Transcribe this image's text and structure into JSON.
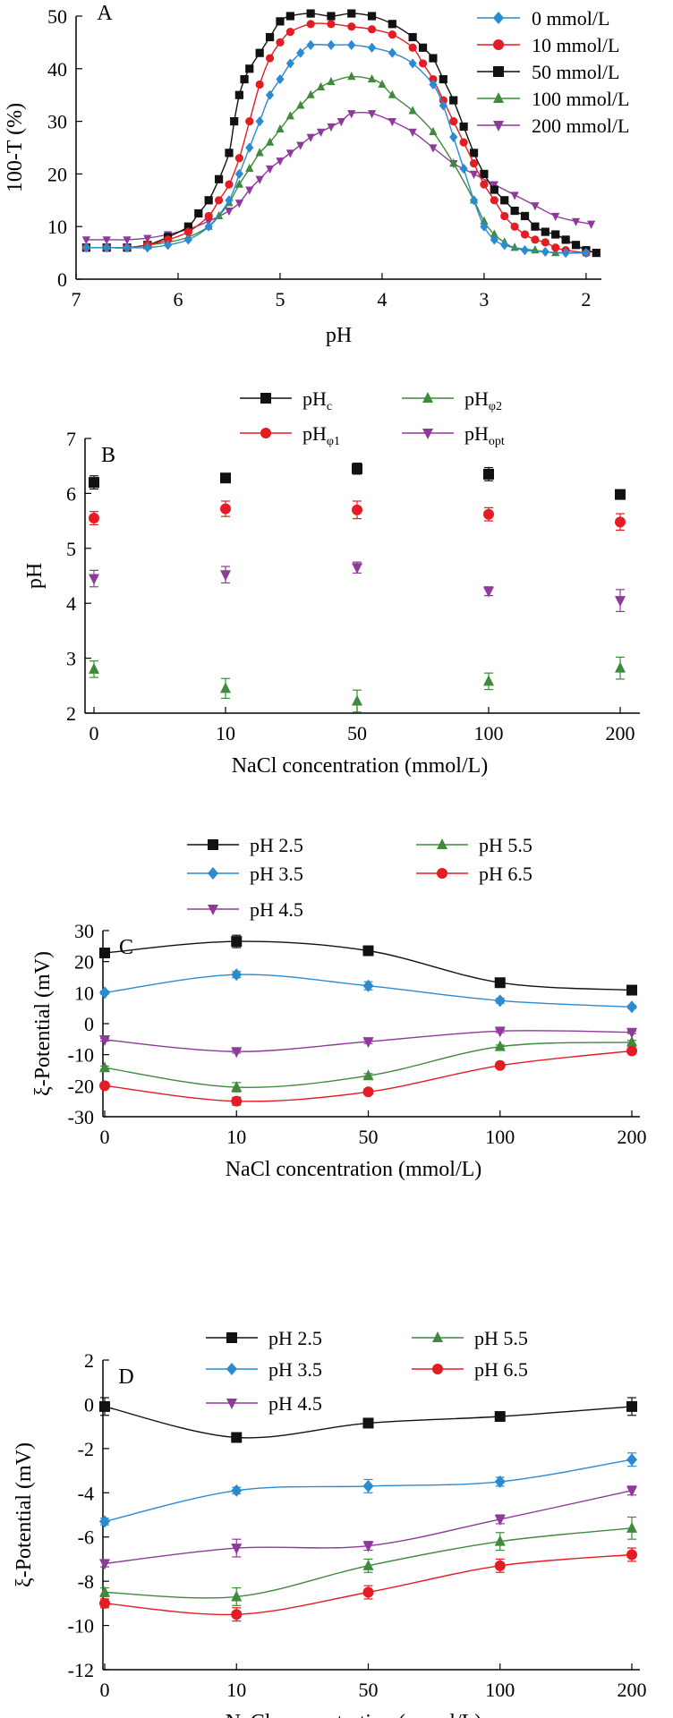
{
  "chart_data": [
    {
      "panel": "A",
      "type": "line",
      "xlabel": "pH",
      "ylabel": "100-T (%)",
      "xlim": [
        7.0,
        1.85
      ],
      "ylim": [
        0,
        50
      ],
      "xticks": [
        7,
        6,
        5,
        4,
        3,
        2
      ],
      "yticks": [
        0,
        10,
        20,
        30,
        40,
        50
      ],
      "legend_position": "top-right",
      "series": [
        {
          "name": "0 mmol/L",
          "color": "#2a8bd0",
          "marker": "diamond",
          "points": [
            [
              6.9,
              6
            ],
            [
              6.7,
              6
            ],
            [
              6.5,
              6
            ],
            [
              6.3,
              6
            ],
            [
              6.1,
              6.5
            ],
            [
              5.9,
              7.5
            ],
            [
              5.7,
              10
            ],
            [
              5.5,
              15
            ],
            [
              5.4,
              20
            ],
            [
              5.3,
              25
            ],
            [
              5.2,
              30
            ],
            [
              5.1,
              35
            ],
            [
              5.0,
              38
            ],
            [
              4.9,
              41
            ],
            [
              4.8,
              43
            ],
            [
              4.7,
              44.5
            ],
            [
              4.5,
              44.5
            ],
            [
              4.3,
              44.5
            ],
            [
              4.1,
              44
            ],
            [
              3.9,
              43
            ],
            [
              3.7,
              41
            ],
            [
              3.5,
              37
            ],
            [
              3.4,
              33
            ],
            [
              3.3,
              27
            ],
            [
              3.2,
              21
            ],
            [
              3.1,
              15
            ],
            [
              3.0,
              10
            ],
            [
              2.9,
              7.5
            ],
            [
              2.8,
              6.5
            ],
            [
              2.6,
              5.5
            ],
            [
              2.4,
              5.2
            ],
            [
              2.2,
              5
            ],
            [
              2.0,
              5
            ]
          ]
        },
        {
          "name": "10 mmol/L",
          "color": "#e41c23",
          "marker": "circle",
          "points": [
            [
              6.9,
              6
            ],
            [
              6.7,
              6
            ],
            [
              6.5,
              6
            ],
            [
              6.3,
              6.5
            ],
            [
              6.1,
              7.5
            ],
            [
              5.9,
              9
            ],
            [
              5.7,
              12
            ],
            [
              5.6,
              15
            ],
            [
              5.5,
              18
            ],
            [
              5.4,
              23
            ],
            [
              5.3,
              30
            ],
            [
              5.2,
              37
            ],
            [
              5.1,
              42
            ],
            [
              5.0,
              45
            ],
            [
              4.9,
              47
            ],
            [
              4.7,
              48.5
            ],
            [
              4.5,
              48.5
            ],
            [
              4.3,
              48
            ],
            [
              4.1,
              47.5
            ],
            [
              3.9,
              46.5
            ],
            [
              3.7,
              44
            ],
            [
              3.6,
              41
            ],
            [
              3.5,
              38
            ],
            [
              3.4,
              34
            ],
            [
              3.3,
              30
            ],
            [
              3.2,
              26
            ],
            [
              3.1,
              22
            ],
            [
              3.0,
              18
            ],
            [
              2.9,
              15
            ],
            [
              2.8,
              12
            ],
            [
              2.7,
              10
            ],
            [
              2.6,
              8.5
            ],
            [
              2.5,
              7.5
            ],
            [
              2.4,
              7
            ],
            [
              2.3,
              6
            ],
            [
              2.2,
              5.5
            ],
            [
              2.0,
              5
            ]
          ]
        },
        {
          "name": "50 mmol/L",
          "color": "#111111",
          "marker": "square",
          "points": [
            [
              6.9,
              6
            ],
            [
              6.7,
              6
            ],
            [
              6.5,
              6
            ],
            [
              6.3,
              6.5
            ],
            [
              6.1,
              8
            ],
            [
              5.9,
              10
            ],
            [
              5.8,
              12.5
            ],
            [
              5.7,
              15
            ],
            [
              5.6,
              19
            ],
            [
              5.5,
              24
            ],
            [
              5.45,
              30
            ],
            [
              5.4,
              35
            ],
            [
              5.35,
              38
            ],
            [
              5.3,
              40
            ],
            [
              5.2,
              43
            ],
            [
              5.1,
              46
            ],
            [
              5.0,
              49
            ],
            [
              4.9,
              50
            ],
            [
              4.7,
              50.5
            ],
            [
              4.5,
              50
            ],
            [
              4.3,
              50.5
            ],
            [
              4.1,
              50
            ],
            [
              3.9,
              48.5
            ],
            [
              3.7,
              46
            ],
            [
              3.6,
              44
            ],
            [
              3.5,
              42
            ],
            [
              3.4,
              38
            ],
            [
              3.3,
              34
            ],
            [
              3.2,
              29
            ],
            [
              3.1,
              24
            ],
            [
              3.0,
              20
            ],
            [
              2.9,
              17
            ],
            [
              2.8,
              15
            ],
            [
              2.7,
              13
            ],
            [
              2.6,
              12
            ],
            [
              2.5,
              10
            ],
            [
              2.4,
              9
            ],
            [
              2.3,
              8.5
            ],
            [
              2.2,
              7.5
            ],
            [
              2.1,
              6.5
            ],
            [
              2.0,
              5.5
            ],
            [
              1.9,
              5
            ]
          ]
        },
        {
          "name": "100 mmol/L",
          "color": "#3f8a3b",
          "marker": "triangle-up",
          "points": [
            [
              6.9,
              6
            ],
            [
              6.7,
              6
            ],
            [
              6.5,
              6
            ],
            [
              6.3,
              6.5
            ],
            [
              6.1,
              7
            ],
            [
              5.9,
              8
            ],
            [
              5.7,
              10
            ],
            [
              5.6,
              12
            ],
            [
              5.5,
              14.5
            ],
            [
              5.4,
              18
            ],
            [
              5.3,
              21
            ],
            [
              5.2,
              24
            ],
            [
              5.1,
              26
            ],
            [
              5.0,
              28.5
            ],
            [
              4.9,
              31
            ],
            [
              4.8,
              33
            ],
            [
              4.7,
              35
            ],
            [
              4.6,
              36.5
            ],
            [
              4.5,
              37.5
            ],
            [
              4.3,
              38.5
            ],
            [
              4.1,
              38
            ],
            [
              4.0,
              37
            ],
            [
              3.9,
              35
            ],
            [
              3.7,
              32
            ],
            [
              3.5,
              28
            ],
            [
              3.3,
              22
            ],
            [
              3.1,
              15
            ],
            [
              3.0,
              11
            ],
            [
              2.9,
              8.5
            ],
            [
              2.8,
              7
            ],
            [
              2.7,
              6
            ],
            [
              2.5,
              5.5
            ],
            [
              2.3,
              5
            ],
            [
              2.0,
              5
            ]
          ]
        },
        {
          "name": "200 mmol/L",
          "color": "#8e3a9a",
          "marker": "triangle-down",
          "points": [
            [
              6.9,
              7.5
            ],
            [
              6.7,
              7.5
            ],
            [
              6.5,
              7.5
            ],
            [
              6.3,
              7.8
            ],
            [
              6.1,
              8.5
            ],
            [
              5.9,
              9.5
            ],
            [
              5.7,
              11
            ],
            [
              5.5,
              13
            ],
            [
              5.4,
              14.5
            ],
            [
              5.3,
              17
            ],
            [
              5.2,
              19
            ],
            [
              5.1,
              21
            ],
            [
              5.0,
              22.5
            ],
            [
              4.9,
              24
            ],
            [
              4.8,
              25.5
            ],
            [
              4.7,
              27
            ],
            [
              4.6,
              28
            ],
            [
              4.5,
              29
            ],
            [
              4.4,
              30
            ],
            [
              4.3,
              31.5
            ],
            [
              4.1,
              31.5
            ],
            [
              3.9,
              30
            ],
            [
              3.7,
              28
            ],
            [
              3.5,
              25
            ],
            [
              3.3,
              22
            ],
            [
              3.1,
              20
            ],
            [
              2.9,
              18
            ],
            [
              2.7,
              16
            ],
            [
              2.5,
              14
            ],
            [
              2.3,
              12
            ],
            [
              2.1,
              11
            ],
            [
              1.95,
              10.5
            ]
          ]
        }
      ]
    },
    {
      "panel": "B",
      "type": "scatter",
      "xlabel": "NaCl concentration (mmol/L)",
      "ylabel": "pH",
      "categories": [
        "0",
        "10",
        "50",
        "100",
        "200"
      ],
      "ylim": [
        2,
        7
      ],
      "yticks": [
        2,
        3,
        4,
        5,
        6,
        7
      ],
      "legend_position": "top",
      "series": [
        {
          "name": "pH",
          "sub": "c",
          "color": "#111111",
          "marker": "square",
          "values": [
            6.2,
            6.28,
            6.45,
            6.35,
            5.98
          ],
          "errors": [
            0.12,
            0.08,
            0.1,
            0.12,
            0.05
          ]
        },
        {
          "name": "pH",
          "sub": "φ1",
          "color": "#e41c23",
          "marker": "circle",
          "values": [
            5.55,
            5.72,
            5.7,
            5.62,
            5.48
          ],
          "errors": [
            0.12,
            0.14,
            0.16,
            0.12,
            0.15
          ]
        },
        {
          "name": "pH",
          "sub": "φ2",
          "color": "#3f8a3b",
          "marker": "triangle-up",
          "values": [
            2.8,
            2.45,
            2.22,
            2.58,
            2.82
          ],
          "errors": [
            0.15,
            0.18,
            0.2,
            0.15,
            0.2
          ]
        },
        {
          "name": "pH",
          "sub": "opt",
          "color": "#8e3a9a",
          "marker": "triangle-down",
          "values": [
            4.45,
            4.52,
            4.65,
            4.22,
            4.05
          ],
          "errors": [
            0.15,
            0.15,
            0.1,
            0.08,
            0.2
          ]
        }
      ]
    },
    {
      "panel": "C",
      "type": "line",
      "xlabel": "NaCl concentration (mmol/L)",
      "ylabel": "ξ-Potential (mV)",
      "categories": [
        "0",
        "10",
        "50",
        "100",
        "200"
      ],
      "ylim": [
        -30,
        30
      ],
      "yticks": [
        30,
        20,
        10,
        0,
        -10,
        -20,
        -30
      ],
      "legend_position": "top",
      "series": [
        {
          "name": "pH 2.5",
          "color": "#111111",
          "marker": "square",
          "values": [
            22.8,
            26.5,
            23.5,
            13.2,
            10.8
          ],
          "errors": [
            0.5,
            2,
            0.5,
            0.5,
            1
          ]
        },
        {
          "name": "pH 3.5",
          "color": "#2a8bd0",
          "marker": "diamond",
          "values": [
            10,
            15.8,
            12.2,
            7.4,
            5.4
          ],
          "errors": [
            0.5,
            1,
            1.3,
            0.8,
            0.5
          ]
        },
        {
          "name": "pH 4.5",
          "color": "#8e3a9a",
          "marker": "triangle-down",
          "values": [
            -5.2,
            -9,
            -5.8,
            -2.4,
            -2.8
          ],
          "errors": [
            0.4,
            0.5,
            0.6,
            0.5,
            0.4
          ]
        },
        {
          "name": "pH 5.5",
          "color": "#3f8a3b",
          "marker": "triangle-up",
          "values": [
            -14.2,
            -20.5,
            -16.8,
            -7.4,
            -6
          ],
          "errors": [
            0.5,
            1.5,
            0.7,
            0.5,
            0.6
          ]
        },
        {
          "name": "pH 6.5",
          "color": "#e41c23",
          "marker": "circle",
          "values": [
            -20,
            -25,
            -22,
            -13.5,
            -8.8
          ],
          "errors": [
            0.5,
            1.3,
            0.6,
            0.5,
            0.5
          ]
        }
      ]
    },
    {
      "panel": "D",
      "type": "line",
      "xlabel": "NaCl concentration (mmol/L)",
      "ylabel": "ξ-Potential (mV)",
      "categories": [
        "0",
        "10",
        "50",
        "100",
        "200"
      ],
      "ylim": [
        -12,
        2
      ],
      "yticks": [
        2,
        0,
        -2,
        -4,
        -6,
        -8,
        -10,
        -12
      ],
      "legend_position": "top",
      "series": [
        {
          "name": "pH 2.5",
          "color": "#111111",
          "marker": "square",
          "values": [
            -0.1,
            -1.5,
            -0.85,
            -0.55,
            -0.1
          ],
          "errors": [
            0.4,
            0.15,
            0.2,
            0.15,
            0.4
          ]
        },
        {
          "name": "pH 3.5",
          "color": "#2a8bd0",
          "marker": "diamond",
          "values": [
            -5.3,
            -3.9,
            -3.7,
            -3.5,
            -2.5
          ],
          "errors": [
            0.15,
            0.15,
            0.3,
            0.2,
            0.3
          ]
        },
        {
          "name": "pH 4.5",
          "color": "#8e3a9a",
          "marker": "triangle-down",
          "values": [
            -7.2,
            -6.5,
            -6.4,
            -5.2,
            -3.9
          ],
          "errors": [
            0.15,
            0.4,
            0.2,
            0.2,
            0.2
          ]
        },
        {
          "name": "pH 5.5",
          "color": "#3f8a3b",
          "marker": "triangle-up",
          "values": [
            -8.5,
            -8.7,
            -7.3,
            -6.2,
            -5.6
          ],
          "errors": [
            0.2,
            0.4,
            0.3,
            0.4,
            0.5
          ]
        },
        {
          "name": "pH 6.5",
          "color": "#e41c23",
          "marker": "circle",
          "values": [
            -9,
            -9.5,
            -8.5,
            -7.3,
            -6.8
          ],
          "errors": [
            0.2,
            0.3,
            0.3,
            0.3,
            0.3
          ]
        }
      ]
    }
  ]
}
